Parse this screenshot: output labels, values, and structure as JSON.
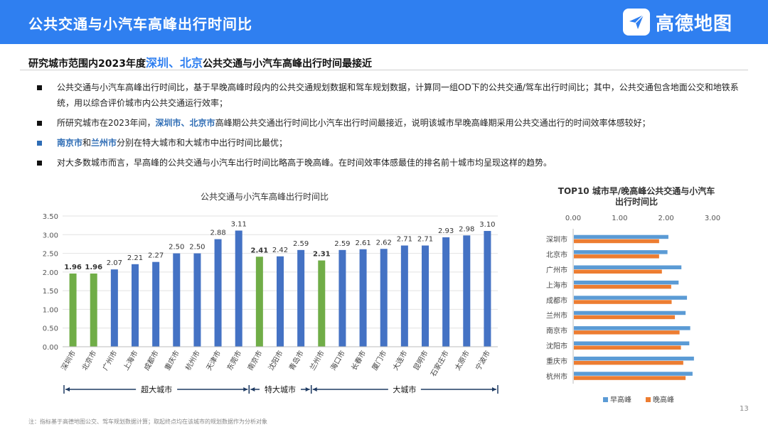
{
  "header": {
    "title": "公共交通与小汽车高峰出行时间比",
    "logo_text": "高德地图"
  },
  "subtitle": {
    "prefix": "研究城市范围内2023年度",
    "highlight": "深圳、北京",
    "suffix": "公共交通与小汽车高峰出行时间最接近"
  },
  "bullets": {
    "b1": "公共交通与小汽车高峰出行时间比，基于早晚高峰时段内的公共交通规划数据和驾车规划数据，计算同一组OD下的公共交通/驾车出行时间比；其中，公共交通包含地面公交和地铁系统，用以综合评价城市内公共交通运行效率；",
    "b2_prefix": "所研究城市在2023年间，",
    "b2_hl": "深圳市、北京市",
    "b2_suffix": "高峰期公共交通出行时间比小汽车出行时间最接近，说明该城市早晚高峰期采用公共交通出行的时间效率体感较好；",
    "b3_hl1": "南京市",
    "b3_mid": "和",
    "b3_hl2": "兰州市",
    "b3_suffix": "分别在特大城市和大城市中出行时间比最优；",
    "b4": "对大多数城市而言，早高峰的公共交通与小汽车出行时间比略高于晚高峰。在时间效率体感最佳的排名前十城市均呈现这样的趋势。"
  },
  "colors": {
    "blue": "#4472c4",
    "green": "#70ad47",
    "orange": "#ed7d31",
    "header": "#2f7ff0",
    "bar_blue2": "#5b9bd5"
  },
  "chart_data": [
    {
      "type": "bar",
      "title": "公共交通与小汽车高峰出行时间比",
      "categories": [
        "深圳市",
        "北京市",
        "广州市",
        "上海市",
        "成都市",
        "重庆市",
        "杭州市",
        "天津市",
        "东莞市",
        "南京市",
        "沈阳市",
        "青岛市",
        "兰州市",
        "海口市",
        "长春市",
        "厦门市",
        "大连市",
        "昆明市",
        "石家庄市",
        "太原市",
        "宁波市"
      ],
      "values": [
        1.96,
        1.96,
        2.07,
        2.21,
        2.27,
        2.5,
        2.5,
        2.88,
        3.11,
        2.41,
        2.42,
        2.59,
        2.31,
        2.59,
        2.61,
        2.62,
        2.71,
        2.71,
        2.93,
        2.98,
        3.1
      ],
      "value_labels": [
        "1.96",
        "1.96",
        "2.07",
        "2.21",
        "2.27",
        "2.50",
        "2.50",
        "2.88",
        "3.11",
        "2.41",
        "2.42",
        "2.59",
        "2.31",
        "2.59",
        "2.61",
        "2.62",
        "2.71",
        "2.71",
        "2.93",
        "2.98",
        "3.10"
      ],
      "highlighted": [
        0,
        1,
        9,
        12
      ],
      "ylim": [
        0,
        3.5
      ],
      "yticks": [
        "0.00",
        "0.50",
        "1.00",
        "1.50",
        "2.00",
        "2.50",
        "3.00",
        "3.50"
      ],
      "groups": [
        {
          "label": "超大城市",
          "from": 0,
          "to": 8
        },
        {
          "label": "特大城市",
          "from": 9,
          "to": 11
        },
        {
          "label": "大城市",
          "from": 12,
          "to": 20
        }
      ],
      "grid": true
    },
    {
      "type": "bar",
      "orientation": "horizontal",
      "title": "TOP10 城市早/晚高峰公共交通与小汽车出行时间比",
      "categories": [
        "深圳市",
        "北京市",
        "广州市",
        "上海市",
        "成都市",
        "兰州市",
        "南京市",
        "沈阳市",
        "重庆市",
        "杭州市"
      ],
      "series": [
        {
          "name": "早高峰",
          "values": [
            2.05,
            2.03,
            2.33,
            2.27,
            2.45,
            2.42,
            2.52,
            2.5,
            2.6,
            2.57
          ]
        },
        {
          "name": "晚高峰",
          "values": [
            1.85,
            1.85,
            1.91,
            2.11,
            2.12,
            2.19,
            2.29,
            2.32,
            2.37,
            2.42
          ]
        }
      ],
      "xlim": [
        0,
        3
      ],
      "xticks": [
        "0.00",
        "1.00",
        "2.00",
        "3.00"
      ],
      "legend_position": "bottom"
    }
  ],
  "footnote": "注：指标基于高德地图公交、驾车规划数据计算；取起终点均在该城市的规划数据作为分析对象",
  "page_number": "13"
}
